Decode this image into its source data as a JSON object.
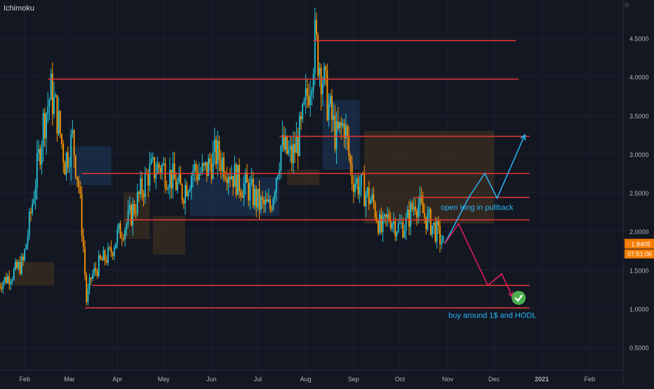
{
  "indicator": {
    "name": "Ichimoku"
  },
  "colors": {
    "background": "#131722",
    "grid": "#1e2230",
    "bull": "#26c6da",
    "bear": "#ff9800",
    "level": "#e53935",
    "projection_up": "#29b6f6",
    "projection_down": "#e91e63",
    "cloud_bull": "#1e3a5f",
    "cloud_bear": "#4a3520",
    "axis_text": "#b2b5be",
    "price_badge": "#f57c00",
    "check": "#4caf50"
  },
  "chart_data": {
    "type": "candlestick",
    "title": "",
    "xlabel": "",
    "ylabel": "",
    "ylim": [
      0.0,
      4.75
    ],
    "y_ticks": [
      "4.5000",
      "4.0000",
      "3.5000",
      "3.0000",
      "2.5000",
      "2.0000",
      "1.5000",
      "1.0000",
      "0.5000"
    ],
    "x_ticks": [
      "Feb",
      "Mar",
      "Apr",
      "May",
      "Jun",
      "Jul",
      "Aug",
      "Sep",
      "Oct",
      "Nov",
      "Dec",
      "2021",
      "Feb"
    ],
    "current_price": "1.8405",
    "countdown": "07:51:06",
    "grid": true,
    "series": [
      {
        "type": "close_path",
        "points": [
          [
            "2020-01-15",
            1.3
          ],
          [
            "2020-01-25",
            1.45
          ],
          [
            "2020-02-01",
            1.6
          ],
          [
            "2020-02-05",
            2.1
          ],
          [
            "2020-02-10",
            2.8
          ],
          [
            "2020-02-14",
            3.4
          ],
          [
            "2020-02-19",
            3.8
          ],
          [
            "2020-02-23",
            3.5
          ],
          [
            "2020-02-28",
            2.9
          ],
          [
            "2020-03-04",
            3.2
          ],
          [
            "2020-03-08",
            2.6
          ],
          [
            "2020-03-11",
            1.8
          ],
          [
            "2020-03-13",
            1.1
          ],
          [
            "2020-03-16",
            1.4
          ],
          [
            "2020-03-22",
            1.6
          ],
          [
            "2020-03-28",
            1.7
          ],
          [
            "2020-04-02",
            1.95
          ],
          [
            "2020-04-08",
            2.1
          ],
          [
            "2020-04-15",
            2.4
          ],
          [
            "2020-04-22",
            2.75
          ],
          [
            "2020-04-30",
            2.85
          ],
          [
            "2020-05-07",
            2.7
          ],
          [
            "2020-05-14",
            2.5
          ],
          [
            "2020-05-21",
            2.8
          ],
          [
            "2020-05-28",
            2.75
          ],
          [
            "2020-06-05",
            3.0
          ],
          [
            "2020-06-12",
            2.85
          ],
          [
            "2020-06-19",
            2.65
          ],
          [
            "2020-06-26",
            2.55
          ],
          [
            "2020-07-03",
            2.35
          ],
          [
            "2020-07-10",
            2.3
          ],
          [
            "2020-07-17",
            3.1
          ],
          [
            "2020-07-24",
            2.95
          ],
          [
            "2020-07-30",
            3.3
          ],
          [
            "2020-08-05",
            4.0
          ],
          [
            "2020-08-08",
            4.45
          ],
          [
            "2020-08-12",
            4.1
          ],
          [
            "2020-08-17",
            3.6
          ],
          [
            "2020-08-22",
            3.2
          ],
          [
            "2020-08-27",
            3.4
          ],
          [
            "2020-09-01",
            2.7
          ],
          [
            "2020-09-08",
            2.55
          ],
          [
            "2020-09-15",
            2.35
          ],
          [
            "2020-09-20",
            2.0
          ],
          [
            "2020-09-25",
            2.2
          ],
          [
            "2020-10-01",
            2.05
          ],
          [
            "2020-10-06",
            2.1
          ],
          [
            "2020-10-12",
            2.4
          ],
          [
            "2020-10-18",
            2.2
          ],
          [
            "2020-10-24",
            2.05
          ],
          [
            "2020-10-30",
            1.84
          ]
        ]
      }
    ],
    "cloud": [
      {
        "start": "2020-01-25",
        "end": "2020-02-20",
        "top": 1.6,
        "bottom": 1.3,
        "bias": "bear"
      },
      {
        "start": "2020-03-01",
        "end": "2020-03-28",
        "top": 3.1,
        "bottom": 2.6,
        "bias": "bull"
      },
      {
        "start": "2020-04-05",
        "end": "2020-04-22",
        "top": 2.5,
        "bottom": 1.9,
        "bias": "bear"
      },
      {
        "start": "2020-04-24",
        "end": "2020-05-15",
        "top": 2.2,
        "bottom": 1.7,
        "bias": "bear"
      },
      {
        "start": "2020-05-18",
        "end": "2020-07-15",
        "top": 2.7,
        "bottom": 2.2,
        "bias": "bull"
      },
      {
        "start": "2020-07-20",
        "end": "2020-08-10",
        "top": 2.8,
        "bottom": 2.6,
        "bias": "bear"
      },
      {
        "start": "2020-08-12",
        "end": "2020-09-05",
        "top": 3.7,
        "bottom": 2.8,
        "bias": "bull"
      },
      {
        "start": "2020-09-08",
        "end": "2020-12-01",
        "top": 3.3,
        "bottom": 2.1,
        "bias": "bear"
      }
    ],
    "levels": [
      {
        "price": 4.47,
        "start": "2020-08-06",
        "end": "2020-12-15"
      },
      {
        "price": 3.97,
        "start": "2020-02-16",
        "end": "2020-12-17"
      },
      {
        "price": 3.23,
        "start": "2020-07-15",
        "end": "2020-12-24"
      },
      {
        "price": 2.75,
        "start": "2020-03-09",
        "end": "2020-12-24"
      },
      {
        "price": 2.44,
        "start": "2020-10-10",
        "end": "2020-12-24"
      },
      {
        "price": 2.15,
        "start": "2020-04-06",
        "end": "2020-12-24"
      },
      {
        "price": 1.3,
        "start": "2020-03-16",
        "end": "2020-12-24"
      },
      {
        "price": 1.01,
        "start": "2020-03-11",
        "end": "2020-12-24"
      }
    ],
    "projections": {
      "up": [
        [
          "2020-10-30",
          1.84
        ],
        [
          "2020-11-15",
          2.45
        ],
        [
          "2020-11-25",
          2.75
        ],
        [
          "2020-12-03",
          2.43
        ],
        [
          "2020-12-21",
          3.25
        ]
      ],
      "down": [
        [
          "2020-10-30",
          1.84
        ],
        [
          "2020-11-08",
          2.1
        ],
        [
          "2020-11-27",
          1.3
        ],
        [
          "2020-12-06",
          1.45
        ],
        [
          "2020-12-13",
          1.15
        ]
      ]
    },
    "annotations": [
      {
        "text": "open long in pullback",
        "date": "2020-11-20",
        "price": 2.28,
        "color": "#29b6f6"
      },
      {
        "text": "buy around 1$ and HODL",
        "date": "2020-11-30",
        "price": 0.88,
        "color": "#29b6f6"
      }
    ]
  }
}
